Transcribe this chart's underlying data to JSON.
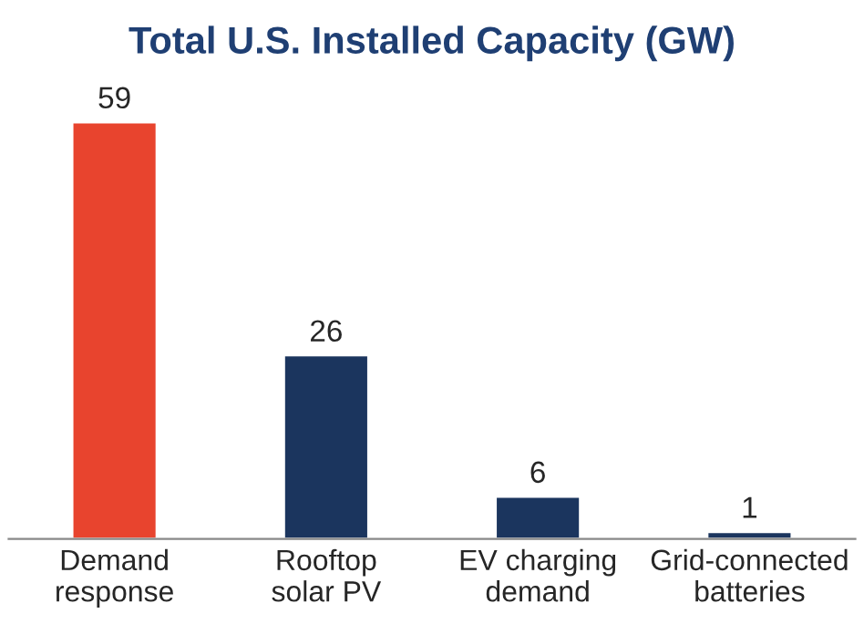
{
  "chart_data": {
    "type": "bar",
    "title": "Total U.S. Installed Capacity (GW)",
    "categories": [
      "Demand\nresponse",
      "Rooftop\nsolar PV",
      "EV charging\ndemand",
      "Grid-connected\nbatteries"
    ],
    "values": [
      59,
      26,
      6,
      1
    ],
    "colors": [
      "#e8442e",
      "#1b355e",
      "#1b355e",
      "#1b355e"
    ],
    "data_labels": true,
    "grid": false,
    "legend": false,
    "tick_labels": "x"
  }
}
